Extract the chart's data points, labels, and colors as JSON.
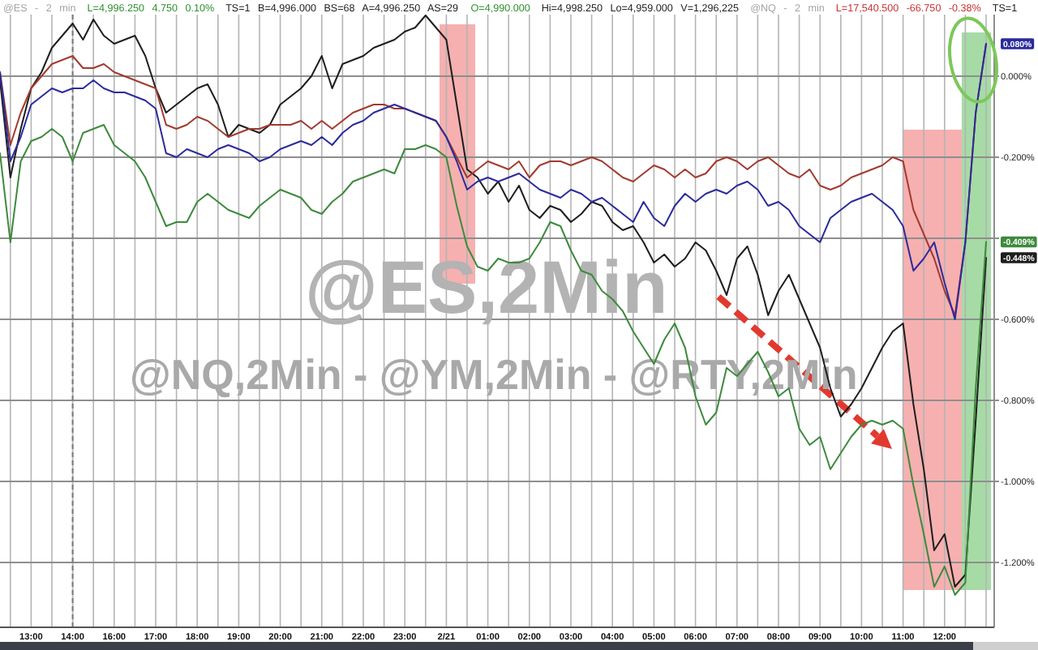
{
  "chart_data": {
    "type": "line",
    "title": "@ES,2Min",
    "subtitle": "@NQ,2Min - @YM,2Min - @RTY,2Min",
    "categories": [
      null,
      null,
      null,
      "13:00",
      null,
      null,
      null,
      "14:00",
      null,
      null,
      null,
      "16:00",
      null,
      null,
      null,
      "17:00",
      null,
      null,
      null,
      "18:00",
      null,
      null,
      null,
      "19:00",
      null,
      null,
      null,
      "20:00",
      null,
      null,
      null,
      "21:00",
      null,
      null,
      null,
      "22:00",
      null,
      null,
      null,
      "23:00",
      null,
      null,
      null,
      "2/21",
      null,
      null,
      null,
      "01:00",
      null,
      null,
      null,
      "02:00",
      null,
      null,
      null,
      "03:00",
      null,
      null,
      null,
      "04:00",
      null,
      null,
      null,
      "05:00",
      null,
      null,
      null,
      "06:00",
      null,
      null,
      null,
      "07:00",
      null,
      null,
      null,
      "08:00",
      null,
      null,
      null,
      "09:00",
      null,
      null,
      null,
      "10:00",
      null,
      null,
      null,
      "11:00",
      null,
      null,
      null,
      "12:00",
      null,
      null,
      null,
      null
    ],
    "series": [
      {
        "color": "#1e1e1e",
        "values": [
          -0.01,
          -0.25,
          -0.13,
          -0.03,
          0.01,
          0.07,
          0.1,
          0.13,
          0.09,
          0.14,
          0.1,
          0.08,
          0.09,
          0.1,
          0.05,
          -0.03,
          -0.09,
          -0.07,
          -0.05,
          -0.03,
          -0.02,
          -0.07,
          -0.15,
          -0.12,
          -0.13,
          -0.14,
          -0.12,
          -0.07,
          -0.05,
          -0.03,
          0.0,
          0.05,
          -0.03,
          0.03,
          0.04,
          0.05,
          0.07,
          0.08,
          0.09,
          0.11,
          0.12,
          0.15,
          0.12,
          0.09,
          -0.07,
          -0.23,
          -0.25,
          -0.29,
          -0.26,
          -0.31,
          -0.27,
          -0.33,
          -0.35,
          -0.32,
          -0.33,
          -0.36,
          -0.34,
          -0.31,
          -0.32,
          -0.36,
          -0.38,
          -0.37,
          -0.41,
          -0.46,
          -0.44,
          -0.47,
          -0.45,
          -0.41,
          -0.43,
          -0.48,
          -0.54,
          -0.45,
          -0.42,
          -0.49,
          -0.59,
          -0.53,
          -0.49,
          -0.55,
          -0.61,
          -0.67,
          -0.77,
          -0.84,
          -0.81,
          -0.77,
          -0.72,
          -0.67,
          -0.63,
          -0.61,
          -0.81,
          -0.97,
          -1.17,
          -1.13,
          -1.26,
          -1.23,
          -0.85,
          -0.448
        ]
      },
      {
        "color": "#a33a2e",
        "values": [
          0.01,
          -0.17,
          -0.09,
          -0.03,
          0.0,
          0.03,
          0.04,
          0.05,
          0.02,
          0.02,
          0.03,
          0.01,
          0.0,
          -0.01,
          -0.02,
          -0.03,
          -0.12,
          -0.13,
          -0.12,
          -0.1,
          -0.11,
          -0.13,
          -0.15,
          -0.14,
          -0.13,
          -0.13,
          -0.12,
          -0.12,
          -0.12,
          -0.11,
          -0.13,
          -0.11,
          -0.13,
          -0.11,
          -0.09,
          -0.08,
          -0.07,
          -0.07,
          -0.08,
          -0.08,
          -0.09,
          -0.1,
          -0.11,
          -0.15,
          -0.2,
          -0.25,
          -0.23,
          -0.21,
          -0.22,
          -0.23,
          -0.21,
          -0.25,
          -0.22,
          -0.21,
          -0.21,
          -0.22,
          -0.21,
          -0.2,
          -0.21,
          -0.23,
          -0.25,
          -0.26,
          -0.24,
          -0.22,
          -0.23,
          -0.25,
          -0.23,
          -0.25,
          -0.24,
          -0.21,
          -0.2,
          -0.21,
          -0.23,
          -0.21,
          -0.2,
          -0.22,
          -0.24,
          -0.25,
          -0.23,
          -0.27,
          -0.28,
          -0.27,
          -0.25,
          -0.24,
          -0.23,
          -0.22,
          -0.2,
          -0.21,
          -0.33,
          -0.39,
          -0.45,
          -0.53,
          -0.59,
          -0.41,
          -0.09,
          0.08
        ]
      },
      {
        "color": "#2b2b9c",
        "values": [
          0.01,
          -0.21,
          -0.15,
          -0.07,
          -0.05,
          -0.03,
          -0.04,
          -0.03,
          -0.03,
          -0.01,
          -0.03,
          -0.04,
          -0.04,
          -0.05,
          -0.06,
          -0.08,
          -0.19,
          -0.2,
          -0.18,
          -0.19,
          -0.2,
          -0.18,
          -0.17,
          -0.18,
          -0.19,
          -0.21,
          -0.2,
          -0.18,
          -0.17,
          -0.16,
          -0.17,
          -0.15,
          -0.17,
          -0.14,
          -0.12,
          -0.11,
          -0.09,
          -0.08,
          -0.07,
          -0.08,
          -0.09,
          -0.1,
          -0.11,
          -0.15,
          -0.21,
          -0.28,
          -0.26,
          -0.25,
          -0.26,
          -0.25,
          -0.24,
          -0.26,
          -0.28,
          -0.29,
          -0.3,
          -0.28,
          -0.29,
          -0.31,
          -0.3,
          -0.32,
          -0.34,
          -0.36,
          -0.31,
          -0.35,
          -0.37,
          -0.32,
          -0.29,
          -0.31,
          -0.29,
          -0.28,
          -0.29,
          -0.27,
          -0.26,
          -0.28,
          -0.32,
          -0.31,
          -0.33,
          -0.37,
          -0.39,
          -0.41,
          -0.35,
          -0.33,
          -0.31,
          -0.3,
          -0.29,
          -0.31,
          -0.33,
          -0.37,
          -0.48,
          -0.45,
          -0.41,
          -0.51,
          -0.6,
          -0.41,
          -0.09,
          0.08
        ]
      },
      {
        "color": "#3d8a3d",
        "values": [
          -0.19,
          -0.41,
          -0.21,
          -0.16,
          -0.15,
          -0.13,
          -0.15,
          -0.21,
          -0.14,
          -0.13,
          -0.12,
          -0.17,
          -0.19,
          -0.21,
          -0.25,
          -0.31,
          -0.37,
          -0.36,
          -0.36,
          -0.31,
          -0.29,
          -0.31,
          -0.33,
          -0.34,
          -0.35,
          -0.32,
          -0.3,
          -0.28,
          -0.29,
          -0.3,
          -0.33,
          -0.34,
          -0.31,
          -0.29,
          -0.26,
          -0.25,
          -0.24,
          -0.23,
          -0.24,
          -0.18,
          -0.18,
          -0.17,
          -0.18,
          -0.2,
          -0.32,
          -0.42,
          -0.47,
          -0.48,
          -0.45,
          -0.46,
          -0.46,
          -0.45,
          -0.41,
          -0.36,
          -0.37,
          -0.43,
          -0.48,
          -0.49,
          -0.53,
          -0.55,
          -0.58,
          -0.63,
          -0.67,
          -0.71,
          -0.65,
          -0.61,
          -0.67,
          -0.79,
          -0.86,
          -0.83,
          -0.72,
          -0.74,
          -0.71,
          -0.68,
          -0.73,
          -0.79,
          -0.77,
          -0.87,
          -0.91,
          -0.89,
          -0.97,
          -0.93,
          -0.89,
          -0.86,
          -0.85,
          -0.86,
          -0.85,
          -0.87,
          -1.01,
          -1.13,
          -1.26,
          -1.21,
          -1.28,
          -1.25,
          -0.77,
          -0.409
        ]
      }
    ],
    "ylim": [
      -1.36,
      0.18
    ],
    "yticks": [
      {
        "value": 0,
        "label": "0.000%"
      },
      {
        "value": -0.2,
        "label": "-0.200%"
      },
      {
        "value": -0.4,
        "label": null
      },
      {
        "value": -0.6,
        "label": "-0.600%"
      },
      {
        "value": -0.8,
        "label": "-0.800%"
      },
      {
        "value": -1,
        "label": "-1.000%"
      },
      {
        "value": -1.2,
        "label": "-1.200%"
      }
    ],
    "grid": true,
    "ref_lines": [
      {
        "axis": "x",
        "value": "14:00",
        "color": "#7a7a7a",
        "line_style": "dashed"
      }
    ],
    "annotations": [
      "@ES - 2 min",
      "L=4,996.250 4.750 0.10%",
      "TS=1 B=4,996.000 BS=68 A=4,996.250 AS=29",
      "O=4,990.000",
      "Hi=4,998.250 Lo=4,959.000 V=1,296,225",
      "@NQ - 2 min",
      "L=17,540.500 -66.750 -0.38%",
      "TS=1",
      {
        "text": "0.080%",
        "y": 0.08
      },
      {
        "text": "-0.409%",
        "y": -0.409
      },
      {
        "text": "-0.448%",
        "y": -0.448
      }
    ]
  }
}
